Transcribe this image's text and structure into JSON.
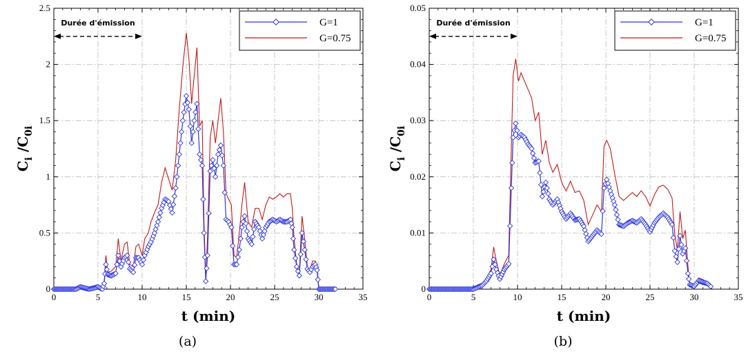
{
  "colors": {
    "series_g1": "#2b35e0",
    "series_g075": "#c41818",
    "grid": "#b8b8b8"
  },
  "chart_data": [
    {
      "type": "line",
      "caption": "(a)",
      "xlabel": "t (min)",
      "ylabel": {
        "main": "C",
        "sub1": "i",
        "sep": " /C",
        "sub2": "0i"
      },
      "xlim": [
        0,
        35
      ],
      "ylim": [
        0,
        2.5
      ],
      "xticks": [
        0,
        5,
        10,
        15,
        20,
        25,
        30,
        35
      ],
      "xtick_labels": [
        "0",
        "5",
        "10",
        "15",
        "20",
        "25",
        "30",
        "35"
      ],
      "yticks": [
        0,
        0.5,
        1,
        1.5,
        2,
        2.5
      ],
      "ytick_labels": [
        "0",
        "0.5",
        "1",
        "1.5",
        "2",
        "2.5"
      ],
      "grid": true,
      "legend_position": "top-right",
      "annotation": {
        "text": "Durée d'émission",
        "x_start": 0,
        "x_end": 10,
        "y": 2.25
      },
      "series": [
        {
          "name": "G=1",
          "style": "line-markers",
          "x": [
            0,
            2.5,
            3.0,
            4.0,
            5.0,
            5.5,
            5.7,
            5.9,
            6.1,
            6.5,
            7.0,
            7.3,
            7.6,
            8.0,
            8.3,
            8.6,
            9.0,
            9.3,
            9.6,
            10.0,
            10.3,
            10.7,
            11.0,
            11.4,
            11.8,
            12.2,
            12.6,
            13.0,
            13.4,
            13.8,
            14.2,
            14.6,
            15.0,
            15.3,
            15.6,
            15.9,
            16.2,
            16.5,
            16.8,
            17.0,
            17.2,
            17.4,
            17.7,
            18.0,
            18.3,
            18.6,
            18.9,
            19.2,
            19.5,
            19.8,
            20.1,
            20.4,
            20.7,
            21.0,
            21.3,
            21.6,
            22.0,
            22.4,
            22.8,
            23.2,
            23.6,
            24.0,
            24.4,
            24.8,
            25.2,
            25.6,
            26.0,
            26.4,
            26.8,
            27.0,
            27.2,
            27.5,
            27.8,
            28.1,
            28.4,
            28.7,
            29.0,
            29.3,
            29.6,
            29.8,
            30.0,
            32.0
          ],
          "y": [
            0.0,
            0.0,
            0.02,
            0.0,
            0.02,
            0.0,
            0.05,
            0.22,
            0.13,
            0.12,
            0.14,
            0.3,
            0.2,
            0.28,
            0.3,
            0.18,
            0.15,
            0.28,
            0.28,
            0.22,
            0.3,
            0.38,
            0.42,
            0.5,
            0.6,
            0.72,
            0.8,
            0.78,
            0.68,
            0.9,
            1.2,
            1.5,
            1.72,
            1.6,
            1.3,
            1.5,
            1.65,
            1.2,
            1.1,
            0.5,
            0.07,
            0.3,
            1.05,
            1.15,
            1.0,
            1.2,
            1.28,
            1.1,
            0.62,
            0.6,
            0.55,
            0.22,
            0.22,
            0.35,
            0.55,
            0.65,
            0.45,
            0.4,
            0.6,
            0.55,
            0.45,
            0.55,
            0.6,
            0.62,
            0.6,
            0.62,
            0.6,
            0.6,
            0.62,
            0.55,
            0.35,
            0.2,
            0.12,
            0.5,
            0.35,
            0.18,
            0.15,
            0.2,
            0.22,
            0.17,
            0.0,
            0.0
          ]
        },
        {
          "name": "G=0.75",
          "style": "line",
          "x": [
            0,
            2.5,
            3.0,
            4.0,
            5.0,
            5.5,
            5.7,
            5.9,
            6.1,
            6.5,
            7.0,
            7.3,
            7.6,
            8.0,
            8.3,
            8.6,
            9.0,
            9.3,
            9.6,
            10.0,
            10.3,
            10.7,
            11.0,
            11.4,
            11.8,
            12.2,
            12.6,
            13.0,
            13.4,
            13.8,
            14.2,
            14.6,
            15.0,
            15.3,
            15.6,
            15.9,
            16.2,
            16.5,
            16.8,
            17.0,
            17.2,
            17.4,
            17.7,
            18.0,
            18.3,
            18.6,
            18.9,
            19.2,
            19.5,
            19.8,
            20.1,
            20.4,
            20.7,
            21.0,
            21.3,
            21.6,
            22.0,
            22.4,
            22.8,
            23.2,
            23.6,
            24.0,
            24.4,
            24.8,
            25.2,
            25.6,
            26.0,
            26.4,
            26.8,
            27.0,
            27.2,
            27.5,
            27.8,
            28.1,
            28.4,
            28.7,
            29.0,
            29.3,
            29.6,
            29.8,
            30.0,
            32.0
          ],
          "y": [
            0.0,
            0.0,
            0.03,
            0.0,
            0.03,
            0.0,
            0.07,
            0.3,
            0.15,
            0.16,
            0.2,
            0.45,
            0.25,
            0.4,
            0.42,
            0.22,
            0.2,
            0.38,
            0.4,
            0.3,
            0.45,
            0.5,
            0.6,
            0.68,
            0.75,
            0.95,
            1.08,
            0.98,
            0.88,
            1.15,
            1.6,
            1.98,
            2.28,
            2.05,
            1.65,
            1.9,
            2.15,
            1.45,
            1.5,
            0.6,
            0.1,
            0.45,
            1.35,
            1.5,
            1.3,
            1.5,
            1.7,
            1.4,
            0.85,
            0.8,
            0.75,
            0.3,
            0.28,
            0.5,
            0.75,
            0.95,
            0.6,
            0.55,
            0.72,
            0.72,
            0.62,
            0.75,
            0.82,
            0.8,
            0.82,
            0.85,
            0.82,
            0.85,
            0.85,
            0.72,
            0.45,
            0.22,
            0.15,
            0.65,
            0.45,
            0.2,
            0.17,
            0.25,
            0.25,
            0.2,
            0.0,
            0.0
          ]
        }
      ]
    },
    {
      "type": "line",
      "caption": "(b)",
      "xlabel": "t (min)",
      "ylabel": {
        "main": "C",
        "sub1": "i",
        "sep": " /C",
        "sub2": "0i"
      },
      "xlim": [
        0,
        35
      ],
      "ylim": [
        0,
        0.05
      ],
      "xticks": [
        0,
        5,
        10,
        15,
        20,
        25,
        30,
        35
      ],
      "xtick_labels": [
        "0",
        "5",
        "10",
        "15",
        "20",
        "25",
        "30",
        "35"
      ],
      "yticks": [
        0,
        0.01,
        0.02,
        0.03,
        0.04,
        0.05
      ],
      "ytick_labels": [
        "0",
        "0.01",
        "0.02",
        "0.03",
        "0.04",
        "0.05"
      ],
      "grid": true,
      "legend_position": "top-right",
      "annotation": {
        "text": "Durée d'émission",
        "x_start": 0,
        "x_end": 10,
        "y": 0.045
      },
      "series": [
        {
          "name": "G=1",
          "style": "line-markers",
          "x": [
            0,
            5.0,
            6.0,
            6.5,
            7.0,
            7.3,
            7.6,
            8.0,
            8.5,
            9.0,
            9.3,
            9.5,
            9.8,
            10.1,
            10.4,
            10.8,
            11.2,
            11.6,
            12.0,
            12.4,
            12.8,
            13.2,
            13.6,
            14.0,
            14.5,
            15.0,
            15.5,
            16.0,
            16.5,
            17.0,
            17.5,
            18.0,
            18.5,
            19.0,
            19.5,
            19.8,
            20.1,
            20.5,
            21.0,
            21.5,
            22.0,
            22.5,
            23.0,
            23.5,
            24.0,
            24.5,
            25.0,
            25.5,
            26.0,
            26.5,
            27.0,
            27.5,
            27.8,
            28.1,
            28.4,
            28.7,
            29.0,
            29.3,
            29.5,
            30.0,
            30.5,
            31.0,
            31.5,
            32.0
          ],
          "y": [
            0.0,
            0.0,
            0.0007,
            0.0015,
            0.0028,
            0.0053,
            0.0035,
            0.0018,
            0.0035,
            0.0045,
            0.018,
            0.027,
            0.0295,
            0.027,
            0.0275,
            0.027,
            0.0258,
            0.025,
            0.0225,
            0.0228,
            0.0165,
            0.019,
            0.016,
            0.015,
            0.016,
            0.0138,
            0.0125,
            0.0135,
            0.0123,
            0.0125,
            0.0112,
            0.0085,
            0.0095,
            0.0105,
            0.0098,
            0.018,
            0.0195,
            0.0175,
            0.015,
            0.0115,
            0.0112,
            0.0118,
            0.0122,
            0.0118,
            0.0125,
            0.0115,
            0.0102,
            0.0118,
            0.0128,
            0.0135,
            0.0128,
            0.0115,
            0.0068,
            0.0048,
            0.0095,
            0.0063,
            0.0073,
            0.0028,
            0.0008,
            0.0005,
            0.0015,
            0.0012,
            0.001,
            0.0003
          ]
        },
        {
          "name": "G=0.75",
          "style": "line",
          "x": [
            0,
            5.0,
            6.0,
            6.5,
            7.0,
            7.3,
            7.6,
            8.0,
            8.5,
            9.0,
            9.3,
            9.5,
            9.8,
            10.1,
            10.4,
            10.8,
            11.2,
            11.6,
            12.0,
            12.4,
            12.8,
            13.2,
            13.6,
            14.0,
            14.5,
            15.0,
            15.5,
            16.0,
            16.5,
            17.0,
            17.5,
            18.0,
            18.5,
            19.0,
            19.5,
            19.8,
            20.1,
            20.5,
            21.0,
            21.5,
            22.0,
            22.5,
            23.0,
            23.5,
            24.0,
            24.5,
            25.0,
            25.5,
            26.0,
            26.5,
            27.0,
            27.5,
            27.8,
            28.1,
            28.4,
            28.7,
            29.0,
            29.3,
            29.5,
            30.0,
            30.5,
            31.0,
            31.5,
            32.0
          ],
          "y": [
            0.0,
            0.0,
            0.001,
            0.002,
            0.0035,
            0.0075,
            0.005,
            0.0025,
            0.0045,
            0.006,
            0.025,
            0.038,
            0.041,
            0.037,
            0.0385,
            0.037,
            0.0355,
            0.034,
            0.03,
            0.0315,
            0.024,
            0.0265,
            0.0225,
            0.0208,
            0.0222,
            0.019,
            0.0175,
            0.0192,
            0.0172,
            0.0175,
            0.0158,
            0.0115,
            0.0132,
            0.015,
            0.0138,
            0.0255,
            0.0265,
            0.025,
            0.0205,
            0.0165,
            0.0158,
            0.0165,
            0.0172,
            0.0165,
            0.0175,
            0.0165,
            0.0148,
            0.0168,
            0.0182,
            0.0185,
            0.0178,
            0.0162,
            0.0098,
            0.007,
            0.0138,
            0.009,
            0.0105,
            0.004,
            0.001,
            0.0007,
            0.002,
            0.0017,
            0.0012,
            0.0004
          ]
        }
      ]
    }
  ]
}
